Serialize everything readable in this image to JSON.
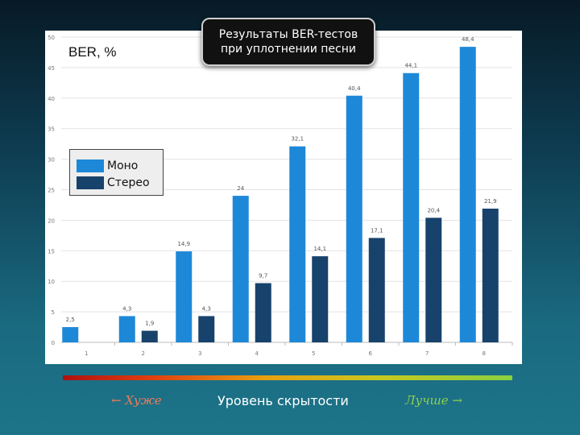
{
  "title_box": {
    "line1": "Результаты BER-тестов",
    "line2": "при уплотнении песни"
  },
  "bottom": {
    "worse": "← Хуже",
    "level": "Уровень скрытости",
    "better": "Лучше →"
  },
  "colors": {
    "mono": "#1e88d8",
    "stereo": "#17426b"
  },
  "chart_data": {
    "type": "bar",
    "title": "Результаты BER-тестов при уплотнении песни",
    "ylabel": "BER, %",
    "xlabel": "Уровень скрытости",
    "categories": [
      "1",
      "2",
      "3",
      "4",
      "5",
      "6",
      "7",
      "8"
    ],
    "ylim": [
      0,
      50
    ],
    "yticks": [
      0,
      5,
      10,
      15,
      20,
      25,
      30,
      35,
      40,
      45,
      50
    ],
    "grid": true,
    "legend_position": "left",
    "series": [
      {
        "name": "Моно",
        "values": [
          2.5,
          4.3,
          14.9,
          24,
          32.1,
          40.4,
          44.1,
          48.4
        ],
        "labels": [
          "2,5",
          "4,3",
          "14,9",
          "24",
          "32,1",
          "40,4",
          "44,1",
          "48,4"
        ]
      },
      {
        "name": "Стерео",
        "values": [
          null,
          1.9,
          4.3,
          9.7,
          14.1,
          17.1,
          20.4,
          21.9
        ],
        "labels": [
          "",
          "1,9",
          "4,3",
          "9,7",
          "14,1",
          "17,1",
          "20,4",
          "21,9"
        ]
      }
    ]
  }
}
